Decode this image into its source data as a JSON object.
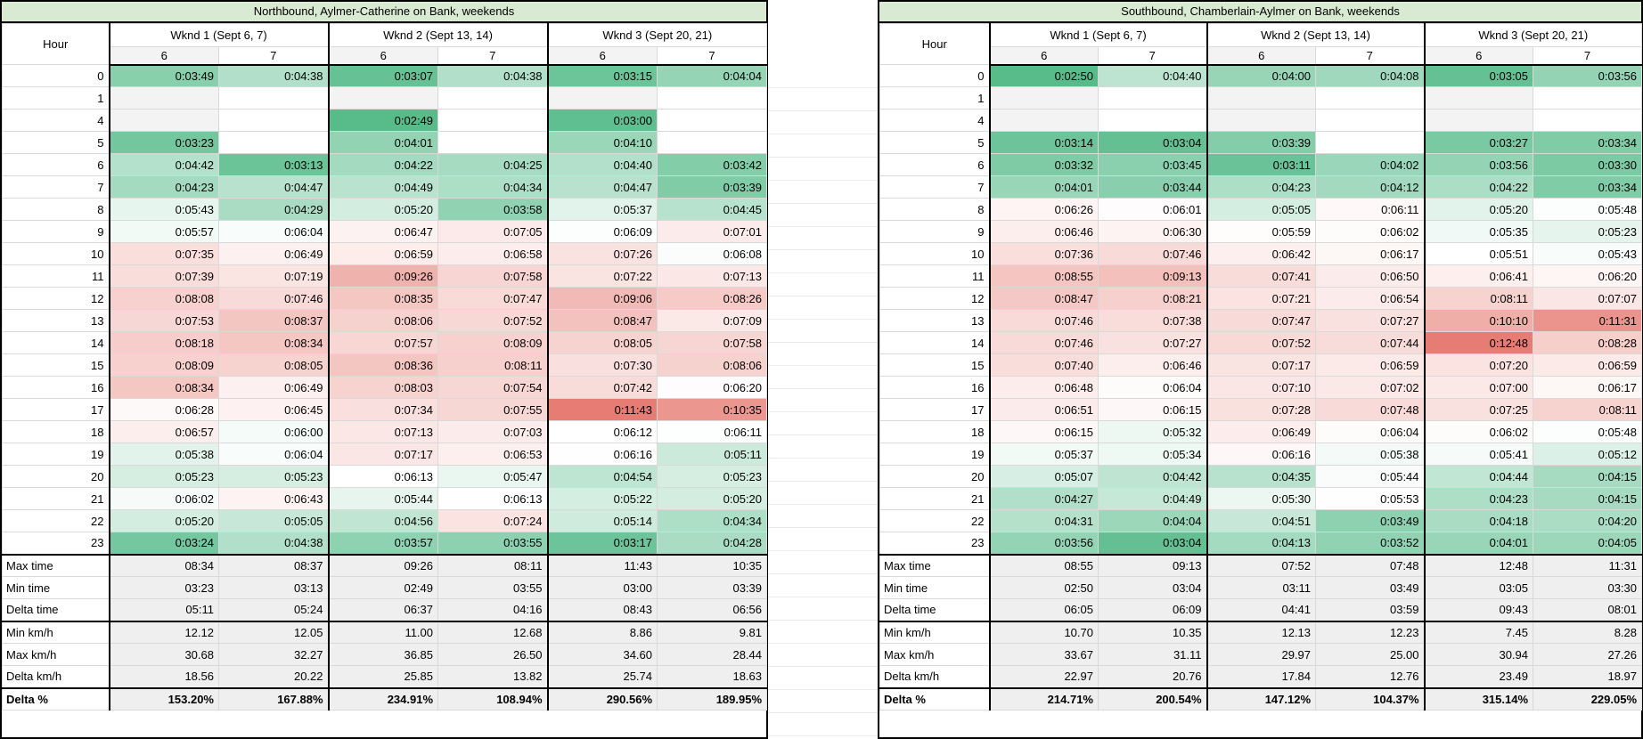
{
  "colors": {
    "title_bg": "#d9ead3",
    "scale_green": "#57bb8a",
    "scale_white": "#ffffff",
    "scale_red": "#e67c73",
    "band_gray": "#f3f3f3",
    "band_white": "#ffffff",
    "summary_bg": "#efefef"
  },
  "tables": [
    {
      "id": "northbound",
      "title": "Northbound, Aylmer-Catherine on Bank, weekends",
      "hour_label": "Hour",
      "groups": [
        {
          "label": "Wknd 1 (Sept 6, 7)",
          "days": [
            "6",
            "7"
          ]
        },
        {
          "label": "Wknd 2 (Sept 13, 14)",
          "days": [
            "6",
            "7"
          ]
        },
        {
          "label": "Wknd 3 (Sept 20, 21)",
          "days": [
            "6",
            "7"
          ]
        }
      ],
      "rows": [
        {
          "hour": "0",
          "values": [
            "0:03:49",
            "0:04:38",
            "0:03:07",
            "0:04:38",
            "0:03:15",
            "0:04:04"
          ]
        },
        {
          "hour": "1",
          "values": [
            null,
            null,
            null,
            null,
            null,
            null
          ]
        },
        {
          "hour": "4",
          "values": [
            null,
            null,
            "0:02:49",
            null,
            "0:03:00",
            null
          ]
        },
        {
          "hour": "5",
          "values": [
            "0:03:23",
            null,
            "0:04:01",
            null,
            "0:04:10",
            null
          ]
        },
        {
          "hour": "6",
          "values": [
            "0:04:42",
            "0:03:13",
            "0:04:22",
            "0:04:25",
            "0:04:40",
            "0:03:42"
          ]
        },
        {
          "hour": "7",
          "values": [
            "0:04:23",
            "0:04:47",
            "0:04:49",
            "0:04:34",
            "0:04:47",
            "0:03:39"
          ]
        },
        {
          "hour": "8",
          "values": [
            "0:05:43",
            "0:04:29",
            "0:05:20",
            "0:03:58",
            "0:05:37",
            "0:04:45"
          ]
        },
        {
          "hour": "9",
          "values": [
            "0:05:57",
            "0:06:04",
            "0:06:47",
            "0:07:05",
            "0:06:09",
            "0:07:01"
          ]
        },
        {
          "hour": "10",
          "values": [
            "0:07:35",
            "0:06:49",
            "0:06:59",
            "0:06:58",
            "0:07:26",
            "0:06:08"
          ]
        },
        {
          "hour": "11",
          "values": [
            "0:07:39",
            "0:07:19",
            "0:09:26",
            "0:07:58",
            "0:07:22",
            "0:07:13"
          ]
        },
        {
          "hour": "12",
          "values": [
            "0:08:08",
            "0:07:46",
            "0:08:35",
            "0:07:47",
            "0:09:06",
            "0:08:26"
          ]
        },
        {
          "hour": "13",
          "values": [
            "0:07:53",
            "0:08:37",
            "0:08:06",
            "0:07:52",
            "0:08:47",
            "0:07:09"
          ]
        },
        {
          "hour": "14",
          "values": [
            "0:08:18",
            "0:08:34",
            "0:07:57",
            "0:08:09",
            "0:08:05",
            "0:07:58"
          ]
        },
        {
          "hour": "15",
          "values": [
            "0:08:09",
            "0:08:05",
            "0:08:36",
            "0:08:11",
            "0:07:30",
            "0:08:06"
          ]
        },
        {
          "hour": "16",
          "values": [
            "0:08:34",
            "0:06:49",
            "0:08:03",
            "0:07:54",
            "0:07:42",
            "0:06:20"
          ]
        },
        {
          "hour": "17",
          "values": [
            "0:06:28",
            "0:06:45",
            "0:07:34",
            "0:07:55",
            "0:11:43",
            "0:10:35"
          ]
        },
        {
          "hour": "18",
          "values": [
            "0:06:57",
            "0:06:00",
            "0:07:13",
            "0:07:03",
            "0:06:12",
            "0:06:11"
          ]
        },
        {
          "hour": "19",
          "values": [
            "0:05:38",
            "0:06:04",
            "0:07:17",
            "0:06:53",
            "0:06:16",
            "0:05:11"
          ]
        },
        {
          "hour": "20",
          "values": [
            "0:05:23",
            "0:05:23",
            "0:06:13",
            "0:05:47",
            "0:04:54",
            "0:05:23"
          ]
        },
        {
          "hour": "21",
          "values": [
            "0:06:02",
            "0:06:43",
            "0:05:44",
            "0:06:13",
            "0:05:22",
            "0:05:20"
          ]
        },
        {
          "hour": "22",
          "values": [
            "0:05:20",
            "0:05:05",
            "0:04:56",
            "0:07:24",
            "0:05:14",
            "0:04:34"
          ]
        },
        {
          "hour": "23",
          "values": [
            "0:03:24",
            "0:04:38",
            "0:03:57",
            "0:03:55",
            "0:03:17",
            "0:04:28"
          ]
        }
      ],
      "summary": [
        {
          "label": "Max time",
          "values": [
            "08:34",
            "08:37",
            "09:26",
            "08:11",
            "11:43",
            "10:35"
          ],
          "thick_top": true
        },
        {
          "label": "Min time",
          "values": [
            "03:23",
            "03:13",
            "02:49",
            "03:55",
            "03:00",
            "03:39"
          ]
        },
        {
          "label": "Delta time",
          "values": [
            "05:11",
            "05:24",
            "06:37",
            "04:16",
            "08:43",
            "06:56"
          ]
        },
        {
          "label": "Min km/h",
          "values": [
            "12.12",
            "12.05",
            "11.00",
            "12.68",
            "8.86",
            "9.81"
          ],
          "thick_top": true
        },
        {
          "label": "Max km/h",
          "values": [
            "30.68",
            "32.27",
            "36.85",
            "26.50",
            "34.60",
            "28.44"
          ]
        },
        {
          "label": "Delta km/h",
          "values": [
            "18.56",
            "20.22",
            "25.85",
            "13.82",
            "25.74",
            "18.63"
          ]
        },
        {
          "label": "Delta %",
          "values": [
            "153.20%",
            "167.88%",
            "234.91%",
            "108.94%",
            "290.56%",
            "189.95%"
          ],
          "thick_top": true,
          "bold": true
        }
      ]
    },
    {
      "id": "southbound",
      "title": "Southbound, Chamberlain-Aylmer on Bank, weekends",
      "hour_label": "Hour",
      "groups": [
        {
          "label": "Wknd 1 (Sept 6, 7)",
          "days": [
            "6",
            "7"
          ]
        },
        {
          "label": "Wknd 2 (Sept 13, 14)",
          "days": [
            "6",
            "7"
          ]
        },
        {
          "label": "Wknd 3 (Sept 20, 21)",
          "days": [
            "6",
            "7"
          ]
        }
      ],
      "rows": [
        {
          "hour": "0",
          "values": [
            "0:02:50",
            "0:04:40",
            "0:04:00",
            "0:04:08",
            "0:03:05",
            "0:03:56"
          ]
        },
        {
          "hour": "1",
          "values": [
            null,
            null,
            null,
            null,
            null,
            null
          ]
        },
        {
          "hour": "4",
          "values": [
            null,
            null,
            null,
            null,
            null,
            null
          ]
        },
        {
          "hour": "5",
          "values": [
            "0:03:14",
            "0:03:04",
            "0:03:39",
            null,
            "0:03:27",
            "0:03:34"
          ]
        },
        {
          "hour": "6",
          "values": [
            "0:03:32",
            "0:03:45",
            "0:03:11",
            "0:04:02",
            "0:03:56",
            "0:03:30"
          ]
        },
        {
          "hour": "7",
          "values": [
            "0:04:01",
            "0:03:44",
            "0:04:23",
            "0:04:12",
            "0:04:22",
            "0:03:34"
          ]
        },
        {
          "hour": "8",
          "values": [
            "0:06:26",
            "0:06:01",
            "0:05:05",
            "0:06:11",
            "0:05:20",
            "0:05:48"
          ]
        },
        {
          "hour": "9",
          "values": [
            "0:06:46",
            "0:06:30",
            "0:05:59",
            "0:06:02",
            "0:05:35",
            "0:05:23"
          ]
        },
        {
          "hour": "10",
          "values": [
            "0:07:36",
            "0:07:46",
            "0:06:42",
            "0:06:17",
            "0:05:51",
            "0:05:43"
          ]
        },
        {
          "hour": "11",
          "values": [
            "0:08:55",
            "0:09:13",
            "0:07:41",
            "0:06:50",
            "0:06:41",
            "0:06:20"
          ]
        },
        {
          "hour": "12",
          "values": [
            "0:08:47",
            "0:08:21",
            "0:07:21",
            "0:06:54",
            "0:08:11",
            "0:07:07"
          ]
        },
        {
          "hour": "13",
          "values": [
            "0:07:46",
            "0:07:38",
            "0:07:47",
            "0:07:27",
            "0:10:10",
            "0:11:31"
          ]
        },
        {
          "hour": "14",
          "values": [
            "0:07:46",
            "0:07:27",
            "0:07:52",
            "0:07:44",
            "0:12:48",
            "0:08:28"
          ]
        },
        {
          "hour": "15",
          "values": [
            "0:07:40",
            "0:06:46",
            "0:07:17",
            "0:06:59",
            "0:07:20",
            "0:06:59"
          ]
        },
        {
          "hour": "16",
          "values": [
            "0:06:48",
            "0:06:04",
            "0:07:10",
            "0:07:02",
            "0:07:00",
            "0:06:17"
          ]
        },
        {
          "hour": "17",
          "values": [
            "0:06:51",
            "0:06:15",
            "0:07:28",
            "0:07:48",
            "0:07:25",
            "0:08:11"
          ]
        },
        {
          "hour": "18",
          "values": [
            "0:06:15",
            "0:05:32",
            "0:06:49",
            "0:06:04",
            "0:06:02",
            "0:05:48"
          ]
        },
        {
          "hour": "19",
          "values": [
            "0:05:37",
            "0:05:34",
            "0:06:16",
            "0:05:38",
            "0:05:41",
            "0:05:12"
          ]
        },
        {
          "hour": "20",
          "values": [
            "0:05:07",
            "0:04:42",
            "0:04:35",
            "0:05:44",
            "0:04:44",
            "0:04:15"
          ]
        },
        {
          "hour": "21",
          "values": [
            "0:04:27",
            "0:04:49",
            "0:05:30",
            "0:05:53",
            "0:04:23",
            "0:04:15"
          ]
        },
        {
          "hour": "22",
          "values": [
            "0:04:31",
            "0:04:04",
            "0:04:51",
            "0:03:49",
            "0:04:18",
            "0:04:20"
          ]
        },
        {
          "hour": "23",
          "values": [
            "0:03:56",
            "0:03:04",
            "0:04:13",
            "0:03:52",
            "0:04:01",
            "0:04:05"
          ]
        }
      ],
      "summary": [
        {
          "label": "Max time",
          "values": [
            "08:55",
            "09:13",
            "07:52",
            "07:48",
            "12:48",
            "11:31"
          ],
          "thick_top": true
        },
        {
          "label": "Min time",
          "values": [
            "02:50",
            "03:04",
            "03:11",
            "03:49",
            "03:05",
            "03:30"
          ]
        },
        {
          "label": "Delta time",
          "values": [
            "06:05",
            "06:09",
            "04:41",
            "03:59",
            "09:43",
            "08:01"
          ]
        },
        {
          "label": "Min km/h",
          "values": [
            "10.70",
            "10.35",
            "12.13",
            "12.23",
            "7.45",
            "8.28"
          ],
          "thick_top": true
        },
        {
          "label": "Max km/h",
          "values": [
            "33.67",
            "31.11",
            "29.97",
            "25.00",
            "30.94",
            "27.26"
          ]
        },
        {
          "label": "Delta km/h",
          "values": [
            "22.97",
            "20.76",
            "17.84",
            "12.76",
            "23.49",
            "18.97"
          ]
        },
        {
          "label": "Delta %",
          "values": [
            "214.71%",
            "200.54%",
            "147.12%",
            "104.37%",
            "315.14%",
            "229.05%"
          ],
          "thick_top": true,
          "bold": true
        }
      ]
    }
  ]
}
